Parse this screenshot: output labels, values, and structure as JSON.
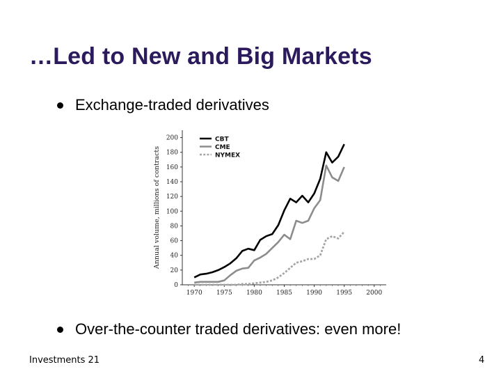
{
  "slide": {
    "title": "…Led to New and Big Markets",
    "bullets": [
      "Exchange-traded derivatives",
      "Over-the-counter traded derivatives: even more!"
    ],
    "footer_left": "Investments 21",
    "page_number": "4"
  },
  "chart_data": {
    "type": "line",
    "title": "",
    "xlabel": "",
    "ylabel": "Annual volume, millions of contracts",
    "xlim": [
      1968,
      2002
    ],
    "ylim": [
      0,
      210
    ],
    "x_ticks": [
      1970,
      1975,
      1980,
      1985,
      1990,
      1995,
      2000
    ],
    "y_ticks": [
      0,
      20,
      40,
      60,
      80,
      100,
      120,
      140,
      160,
      180,
      200
    ],
    "legend_position": "top-left",
    "x": [
      1970,
      1971,
      1972,
      1973,
      1974,
      1975,
      1976,
      1977,
      1978,
      1979,
      1980,
      1981,
      1982,
      1983,
      1984,
      1985,
      1986,
      1987,
      1988,
      1989,
      1990,
      1991,
      1992,
      1993,
      1994,
      1995
    ],
    "series": [
      {
        "name": "CBT",
        "color": "#000000",
        "style": "solid",
        "values": [
          10,
          14,
          15,
          17,
          20,
          24,
          29,
          36,
          46,
          49,
          47,
          61,
          66,
          69,
          81,
          101,
          117,
          112,
          121,
          112,
          124,
          144,
          180,
          166,
          174,
          191
        ]
      },
      {
        "name": "CME",
        "color": "#8c8c8c",
        "style": "solid",
        "values": [
          3,
          4,
          4,
          4,
          4,
          6,
          13,
          19,
          22,
          23,
          33,
          37,
          42,
          50,
          58,
          68,
          62,
          87,
          84,
          87,
          104,
          115,
          162,
          146,
          141,
          160
        ]
      },
      {
        "name": "NYMEX",
        "color": "#a6a6a6",
        "style": "dotted",
        "values": [
          0,
          0,
          0,
          0,
          0,
          0,
          0,
          0,
          1,
          1,
          2,
          3,
          4,
          6,
          10,
          16,
          23,
          30,
          32,
          35,
          35,
          40,
          62,
          66,
          63,
          72
        ]
      }
    ]
  }
}
